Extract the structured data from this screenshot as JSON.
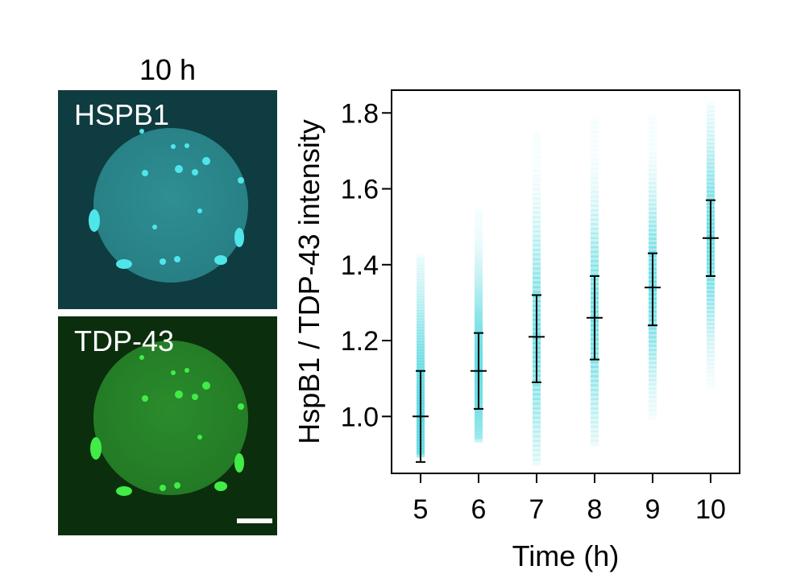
{
  "figure": {
    "time_label": "10 h",
    "micrographs": [
      {
        "label": "HSPB1",
        "channel_color": "#35d6da",
        "background": "#0f3c40"
      },
      {
        "label": "TDP-43",
        "channel_color": "#39e043",
        "background": "#0b2e0d"
      }
    ]
  },
  "chart_data": {
    "type": "scatter",
    "xlabel": "Time (h)",
    "ylabel": "HspB1 / TDP-43 intensity",
    "x_ticks": [
      "5",
      "6",
      "7",
      "8",
      "9",
      "10"
    ],
    "y_ticks": [
      "1.0",
      "1.2",
      "1.4",
      "1.6",
      "1.8"
    ],
    "ylim": [
      0.85,
      1.86
    ],
    "xlim": [
      4.5,
      10.5
    ],
    "point_color": "#40d4dc",
    "series": [
      {
        "x": 5,
        "mean": 1.0,
        "error_low": 0.88,
        "error_high": 1.12,
        "spread": [
          0.9,
          1.42
        ]
      },
      {
        "x": 6,
        "mean": 1.12,
        "error_low": 1.02,
        "error_high": 1.22,
        "spread": [
          0.94,
          1.54
        ]
      },
      {
        "x": 7,
        "mean": 1.21,
        "error_low": 1.09,
        "error_high": 1.32,
        "spread": [
          0.88,
          1.74
        ]
      },
      {
        "x": 8,
        "mean": 1.26,
        "error_low": 1.15,
        "error_high": 1.37,
        "spread": [
          0.93,
          1.78
        ]
      },
      {
        "x": 9,
        "mean": 1.34,
        "error_low": 1.24,
        "error_high": 1.43,
        "spread": [
          1.0,
          1.79
        ]
      },
      {
        "x": 10,
        "mean": 1.47,
        "error_low": 1.37,
        "error_high": 1.57,
        "spread": [
          1.08,
          1.82
        ]
      }
    ],
    "grid": false,
    "legend": "none"
  }
}
